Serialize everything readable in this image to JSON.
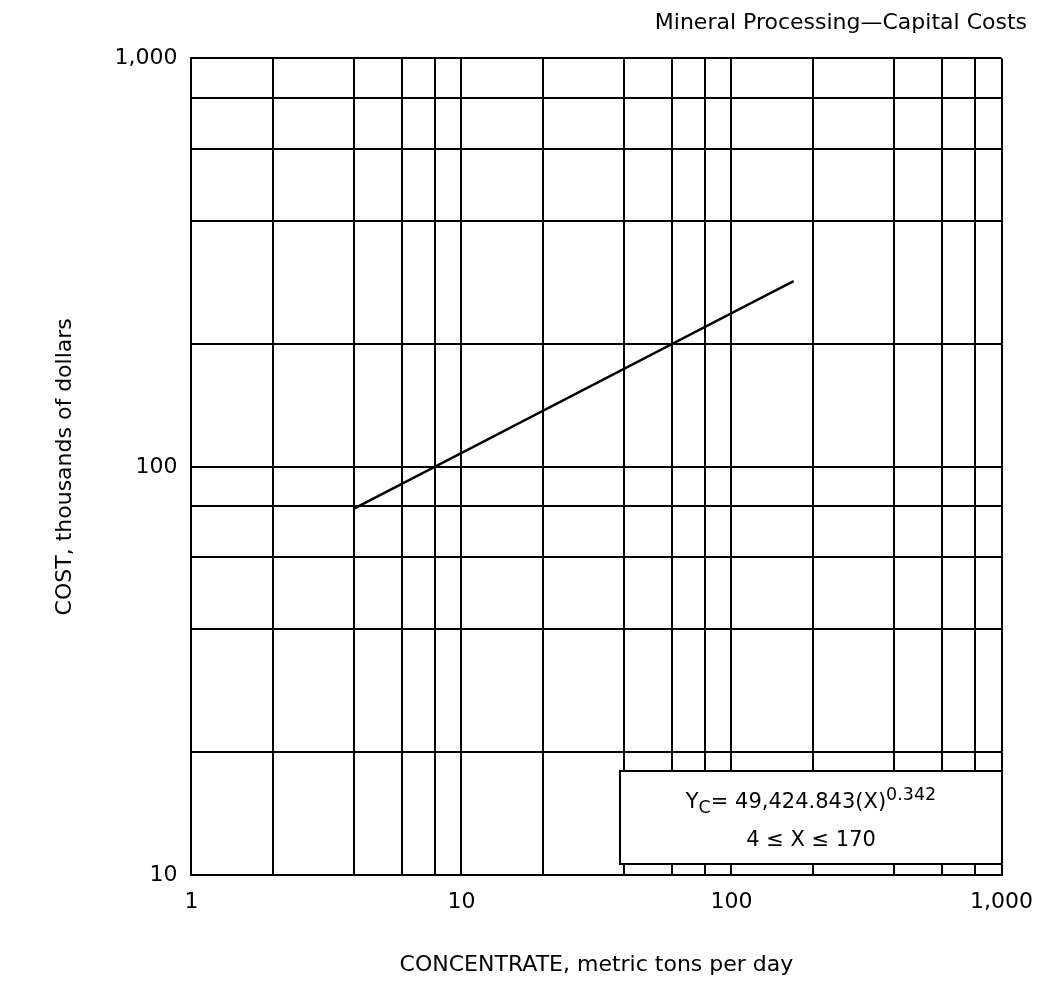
{
  "chart_data": {
    "type": "line",
    "title": "Mineral Processing—Capital Costs",
    "xlabel": "CONCENTRATE, metric tons per day",
    "ylabel": "COST, thousands of dollars",
    "log": "xy",
    "grid": true,
    "legend": false,
    "marker": "none",
    "line_style": "solid",
    "xlim": [
      1,
      1000
    ],
    "ylim": [
      10,
      1000
    ],
    "xticks": [
      1,
      {
        "value": 2,
        "label": null
      },
      {
        "value": 4,
        "label": null
      },
      {
        "value": 6,
        "label": null
      },
      {
        "value": 8,
        "label": null
      },
      10,
      {
        "value": 20,
        "label": null
      },
      {
        "value": 40,
        "label": null
      },
      {
        "value": 60,
        "label": null
      },
      {
        "value": 80,
        "label": null
      },
      100,
      {
        "value": 200,
        "label": null
      },
      {
        "value": 400,
        "label": null
      },
      {
        "value": 600,
        "label": null
      },
      {
        "value": 800,
        "label": null
      },
      {
        "value": 1000,
        "label": "1,000"
      }
    ],
    "yticks": [
      10,
      {
        "value": 20,
        "label": null
      },
      {
        "value": 40,
        "label": null
      },
      {
        "value": 60,
        "label": null
      },
      {
        "value": 80,
        "label": null
      },
      100,
      {
        "value": 200,
        "label": null
      },
      {
        "value": 400,
        "label": null
      },
      {
        "value": 600,
        "label": null
      },
      {
        "value": 800,
        "label": null
      },
      {
        "value": 1000,
        "label": "1,000"
      }
    ],
    "series": [
      {
        "color": "#000000",
        "x": [
          4,
          170
        ],
        "values": [
          79,
          285
        ]
      }
    ],
    "annotations": [
      "Y$_{C}$= 49,424.843(X)$^{0.342}$",
      "4 ≤ X ≤ 170"
    ]
  }
}
